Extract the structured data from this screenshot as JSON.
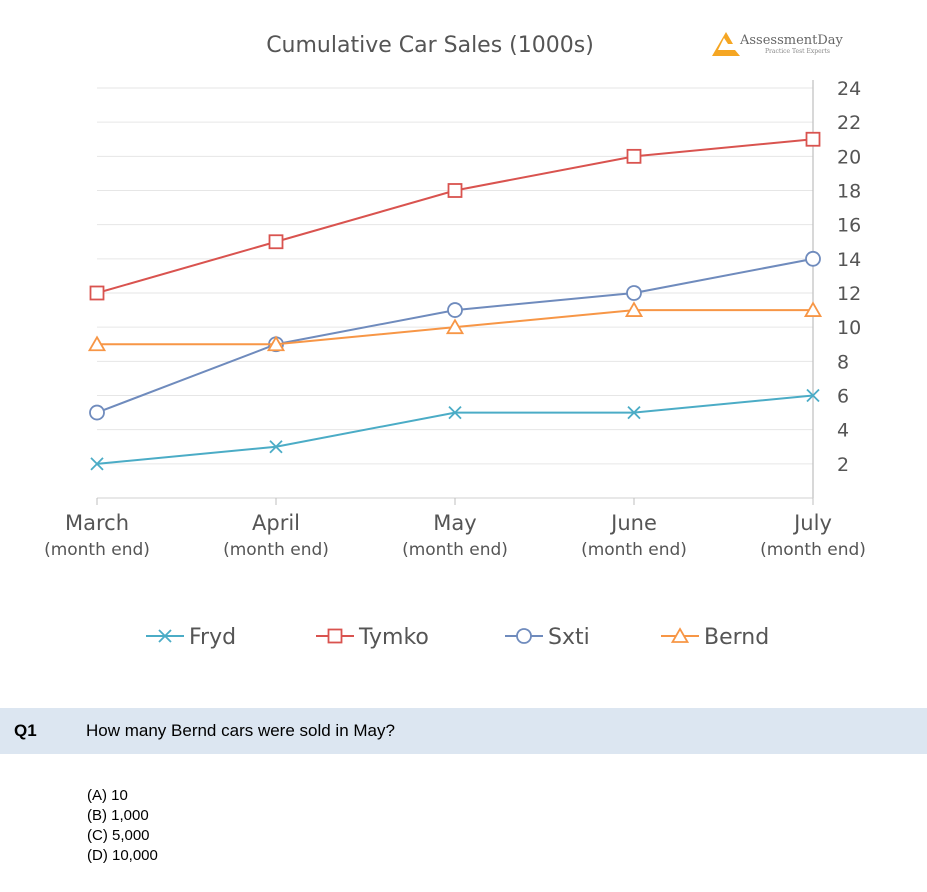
{
  "logo": {
    "name": "AssessmentDay",
    "tagline": "Practice Test Experts"
  },
  "chart_data": {
    "type": "line",
    "title": "Cumulative Car Sales (1000s)",
    "categories": [
      {
        "label": "March",
        "sub": "(month end)"
      },
      {
        "label": "April",
        "sub": "(month end)"
      },
      {
        "label": "May",
        "sub": "(month end)"
      },
      {
        "label": "June",
        "sub": "(month end)"
      },
      {
        "label": "July",
        "sub": "(month end)"
      }
    ],
    "ylim": [
      0,
      24
    ],
    "yticks": [
      2,
      4,
      6,
      8,
      10,
      12,
      14,
      16,
      18,
      20,
      22,
      24
    ],
    "y_axis_position": "right",
    "grid": true,
    "legend_position": "bottom",
    "series": [
      {
        "name": "Fryd",
        "color": "#4bacc6",
        "marker": "x",
        "values": [
          2,
          3,
          5,
          5,
          6
        ]
      },
      {
        "name": "Tymko",
        "color": "#d9534f",
        "marker": "square",
        "values": [
          12,
          15,
          18,
          20,
          21
        ]
      },
      {
        "name": "Sxti",
        "color": "#6f8bbd",
        "marker": "circle",
        "values": [
          5,
          9,
          11,
          12,
          14
        ]
      },
      {
        "name": "Bernd",
        "color": "#f79646",
        "marker": "triangle",
        "values": [
          9,
          9,
          10,
          11,
          11
        ]
      }
    ]
  },
  "question": {
    "number": "Q1",
    "text": "How many Bernd cars were sold in May?",
    "options": [
      "(A)  10",
      "(B)  1,000",
      "(C)  5,000",
      "(D)  10,000"
    ]
  }
}
